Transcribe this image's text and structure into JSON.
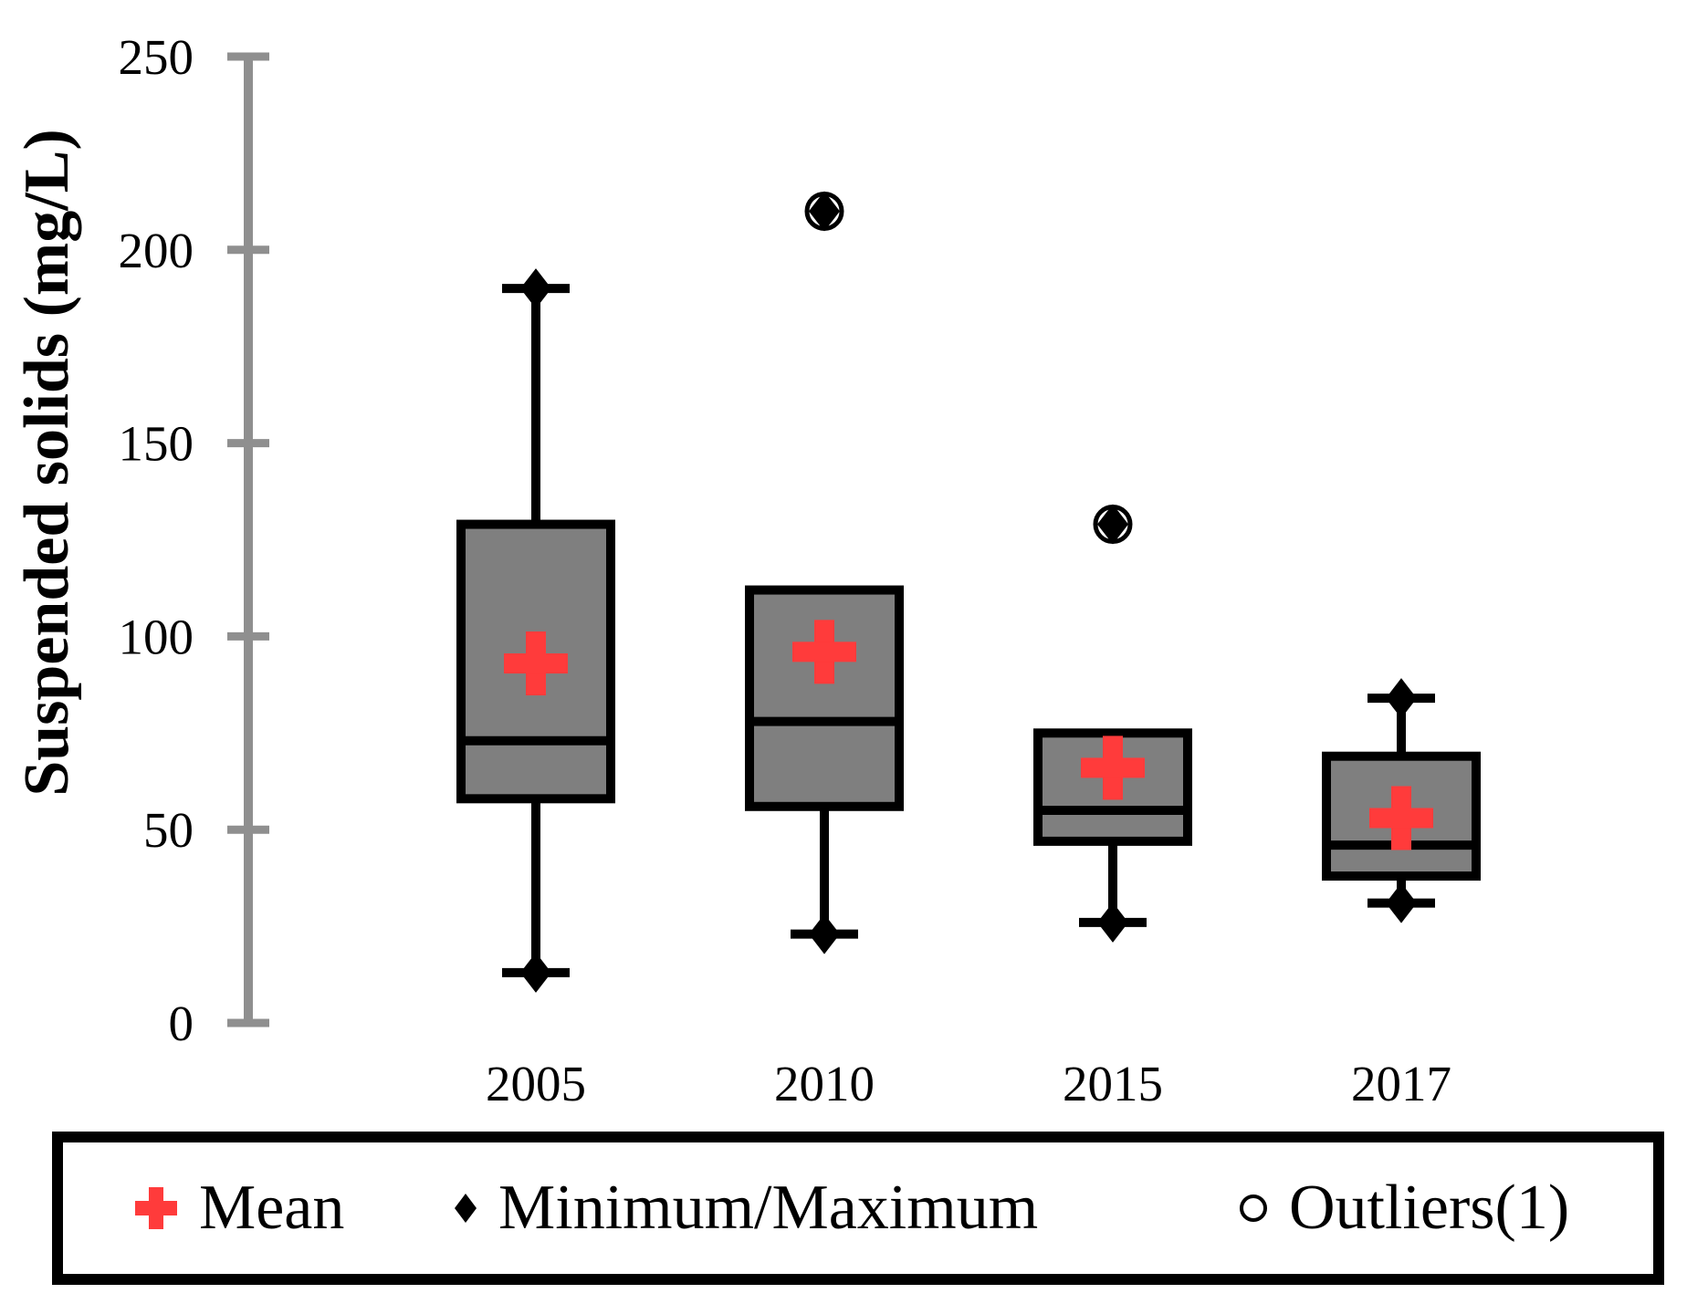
{
  "chart_data": {
    "type": "boxplot",
    "title": "",
    "ylabel": "Suspended solids (mg/L)",
    "xlabel": "",
    "ylim": [
      0,
      250
    ],
    "yticks": [
      0,
      50,
      100,
      150,
      200,
      250
    ],
    "grid": false,
    "legend_position": "bottom-framed-box",
    "categories": [
      "2005",
      "2010",
      "2015",
      "2017"
    ],
    "series": [
      {
        "label": "2005",
        "min": 13,
        "q1": 58,
        "median": 73,
        "mean": 93,
        "q3": 129,
        "max": 190,
        "whisker_low": 13,
        "whisker_high": 190,
        "outliers": []
      },
      {
        "label": "2010",
        "min": 23,
        "q1": 56,
        "median": 78,
        "mean": 96,
        "q3": 112,
        "max": 210,
        "whisker_low": 23,
        "whisker_high": null,
        "outliers": [
          210
        ]
      },
      {
        "label": "2015",
        "min": 26,
        "q1": 47,
        "median": 55,
        "mean": 66,
        "q3": 75,
        "max": 129,
        "whisker_low": 26,
        "whisker_high": null,
        "outliers": [
          129
        ]
      },
      {
        "label": "2017",
        "min": 31,
        "q1": 38,
        "median": 46,
        "mean": 53,
        "q3": 69,
        "max": 84,
        "whisker_low": 31,
        "whisker_high": 84,
        "outliers": []
      }
    ],
    "legend": [
      "Mean",
      "Minimum/Maximum",
      "Outliers(1)"
    ],
    "markers": {
      "mean": "red-plus",
      "min_max": "black-diamond",
      "outlier": "open-circle"
    },
    "colors": {
      "box_fill": "#7F7F7F",
      "box_border": "#000000",
      "mean_marker": "#FF3B3B",
      "axis": "#8F8F8F",
      "text": "#000000"
    }
  }
}
